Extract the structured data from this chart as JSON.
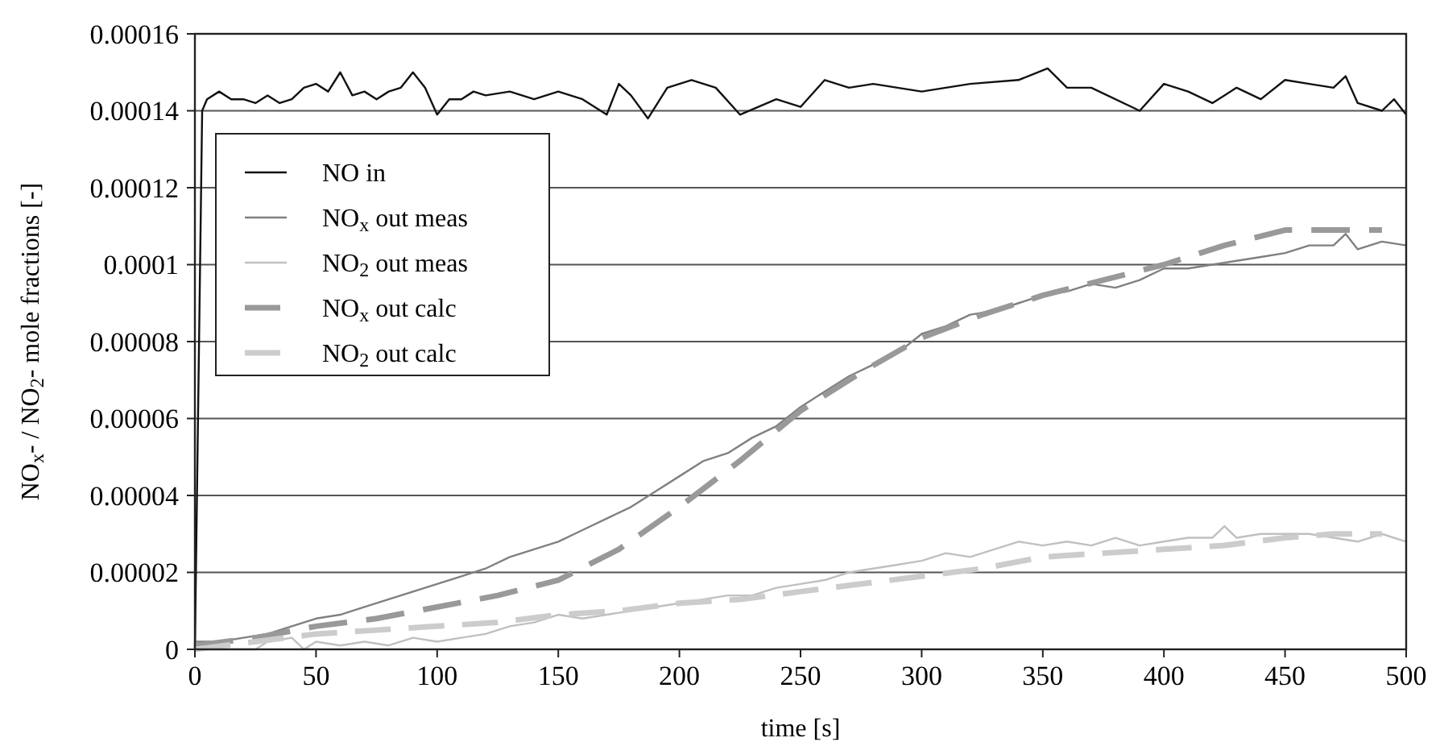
{
  "chart_data": {
    "type": "line",
    "xlabel": "time [s]",
    "ylabel": "NO$_{x}$- / NO$_{2}$- mole fractions [-]",
    "xlim": [
      0,
      500
    ],
    "xticks": [
      0,
      50,
      100,
      150,
      200,
      250,
      300,
      350,
      400,
      450,
      500
    ],
    "ylim": [
      0,
      0.00016
    ],
    "yticks": [
      0,
      {
        "value": 2e-05,
        "label": "0.00002"
      },
      {
        "value": 4e-05,
        "label": "0.00004"
      },
      {
        "value": 6e-05,
        "label": "0.00006"
      },
      {
        "value": 8e-05,
        "label": "0.00008"
      },
      0.0001,
      0.00012,
      0.00014,
      0.00016
    ],
    "grid": "y",
    "legend": "top left",
    "series": [
      {
        "name": "NO in",
        "color": "#111111",
        "line_style": "solid",
        "x": [
          0,
          3,
          5,
          10,
          15,
          20,
          25,
          30,
          35,
          40,
          45,
          50,
          55,
          60,
          65,
          70,
          75,
          80,
          85,
          90,
          95,
          100,
          105,
          110,
          115,
          120,
          130,
          140,
          150,
          160,
          170,
          175,
          180,
          187,
          195,
          205,
          215,
          225,
          240,
          250,
          260,
          270,
          280,
          300,
          320,
          340,
          352,
          360,
          370,
          390,
          400,
          410,
          420,
          430,
          440,
          450,
          460,
          470,
          475,
          480,
          490,
          495,
          500
        ],
        "values": [
          0,
          0.00014,
          0.000143,
          0.000145,
          0.000143,
          0.000143,
          0.000142,
          0.000144,
          0.000142,
          0.000143,
          0.000146,
          0.000147,
          0.000145,
          0.00015,
          0.000144,
          0.000145,
          0.000143,
          0.000145,
          0.000146,
          0.00015,
          0.000146,
          0.000139,
          0.000143,
          0.000143,
          0.000145,
          0.000144,
          0.000145,
          0.000143,
          0.000145,
          0.000143,
          0.000139,
          0.000147,
          0.000144,
          0.000138,
          0.000146,
          0.000148,
          0.000146,
          0.000139,
          0.000143,
          0.000141,
          0.000148,
          0.000146,
          0.000147,
          0.000145,
          0.000147,
          0.000148,
          0.000151,
          0.000146,
          0.000146,
          0.00014,
          0.000147,
          0.000145,
          0.000142,
          0.000146,
          0.000143,
          0.000148,
          0.000147,
          0.000146,
          0.000149,
          0.000142,
          0.00014,
          0.000143,
          0.000139
        ]
      },
      {
        "name": "NO$_{x}$ out meas",
        "color": "#808080",
        "line_style": "solid",
        "x": [
          0,
          10,
          20,
          30,
          40,
          50,
          60,
          70,
          80,
          90,
          100,
          110,
          120,
          130,
          140,
          150,
          160,
          170,
          180,
          190,
          200,
          210,
          220,
          230,
          240,
          250,
          260,
          270,
          280,
          290,
          300,
          310,
          320,
          330,
          340,
          350,
          360,
          370,
          380,
          390,
          400,
          410,
          420,
          430,
          440,
          450,
          460,
          470,
          475,
          480,
          490,
          500
        ],
        "values": [
          2e-06,
          2e-06,
          3e-06,
          4e-06,
          6e-06,
          8e-06,
          9e-06,
          1.1e-05,
          1.3e-05,
          1.5e-05,
          1.7e-05,
          1.9e-05,
          2.1e-05,
          2.4e-05,
          2.6e-05,
          2.8e-05,
          3.1e-05,
          3.4e-05,
          3.7e-05,
          4.1e-05,
          4.5e-05,
          4.9e-05,
          5.1e-05,
          5.5e-05,
          5.8e-05,
          6.3e-05,
          6.7e-05,
          7.1e-05,
          7.4e-05,
          7.7e-05,
          8.2e-05,
          8.4e-05,
          8.7e-05,
          8.8e-05,
          9e-05,
          9.2e-05,
          9.3e-05,
          9.5e-05,
          9.4e-05,
          9.6e-05,
          9.9e-05,
          9.9e-05,
          0.0001,
          0.000101,
          0.000102,
          0.000103,
          0.000105,
          0.000105,
          0.000108,
          0.000104,
          0.000106,
          0.000105
        ]
      },
      {
        "name": "NO$_{2}$ out meas",
        "color": "#c0c0c0",
        "line_style": "solid",
        "x": [
          0,
          25,
          30,
          40,
          45,
          50,
          60,
          70,
          80,
          90,
          100,
          110,
          120,
          130,
          140,
          150,
          160,
          170,
          180,
          190,
          200,
          210,
          220,
          230,
          240,
          250,
          260,
          270,
          280,
          290,
          300,
          310,
          320,
          330,
          340,
          350,
          360,
          370,
          380,
          390,
          400,
          410,
          420,
          425,
          430,
          440,
          450,
          460,
          470,
          480,
          490,
          500
        ],
        "values": [
          0,
          0,
          2e-06,
          3e-06,
          0,
          2e-06,
          1e-06,
          2e-06,
          1e-06,
          3e-06,
          2e-06,
          3e-06,
          4e-06,
          6e-06,
          7e-06,
          9e-06,
          8e-06,
          9e-06,
          1e-05,
          1.1e-05,
          1.2e-05,
          1.3e-05,
          1.4e-05,
          1.4e-05,
          1.6e-05,
          1.7e-05,
          1.8e-05,
          2e-05,
          2.1e-05,
          2.2e-05,
          2.3e-05,
          2.5e-05,
          2.4e-05,
          2.6e-05,
          2.8e-05,
          2.7e-05,
          2.8e-05,
          2.7e-05,
          2.9e-05,
          2.7e-05,
          2.8e-05,
          2.9e-05,
          2.9e-05,
          3.2e-05,
          2.9e-05,
          3e-05,
          3e-05,
          3e-05,
          2.9e-05,
          2.8e-05,
          3e-05,
          2.8e-05
        ]
      },
      {
        "name": "NO$_{x}$ out calc",
        "color": "#999999",
        "line_style": "dashed",
        "x": [
          0,
          25,
          50,
          75,
          100,
          125,
          150,
          175,
          200,
          225,
          250,
          275,
          300,
          325,
          350,
          375,
          400,
          425,
          450,
          470,
          490
        ],
        "values": [
          1e-06,
          3e-06,
          6e-06,
          8e-06,
          1.1e-05,
          1.4e-05,
          1.8e-05,
          2.6e-05,
          3.7e-05,
          4.9e-05,
          6.2e-05,
          7.2e-05,
          8.1e-05,
          8.7e-05,
          9.2e-05,
          9.6e-05,
          0.0001,
          0.000105,
          0.000109,
          0.000109,
          0.000109
        ]
      },
      {
        "name": "NO$_{2}$ out calc",
        "color": "#cccccc",
        "line_style": "dashed",
        "x": [
          0,
          25,
          50,
          75,
          100,
          125,
          150,
          175,
          200,
          225,
          250,
          275,
          300,
          325,
          350,
          375,
          400,
          425,
          450,
          470,
          490
        ],
        "values": [
          0,
          2e-06,
          4e-06,
          5e-06,
          6e-06,
          7e-06,
          9e-06,
          1e-05,
          1.2e-05,
          1.3e-05,
          1.5e-05,
          1.7e-05,
          1.9e-05,
          2.1e-05,
          2.4e-05,
          2.5e-05,
          2.6e-05,
          2.7e-05,
          2.9e-05,
          3e-05,
          3e-05
        ]
      }
    ]
  }
}
